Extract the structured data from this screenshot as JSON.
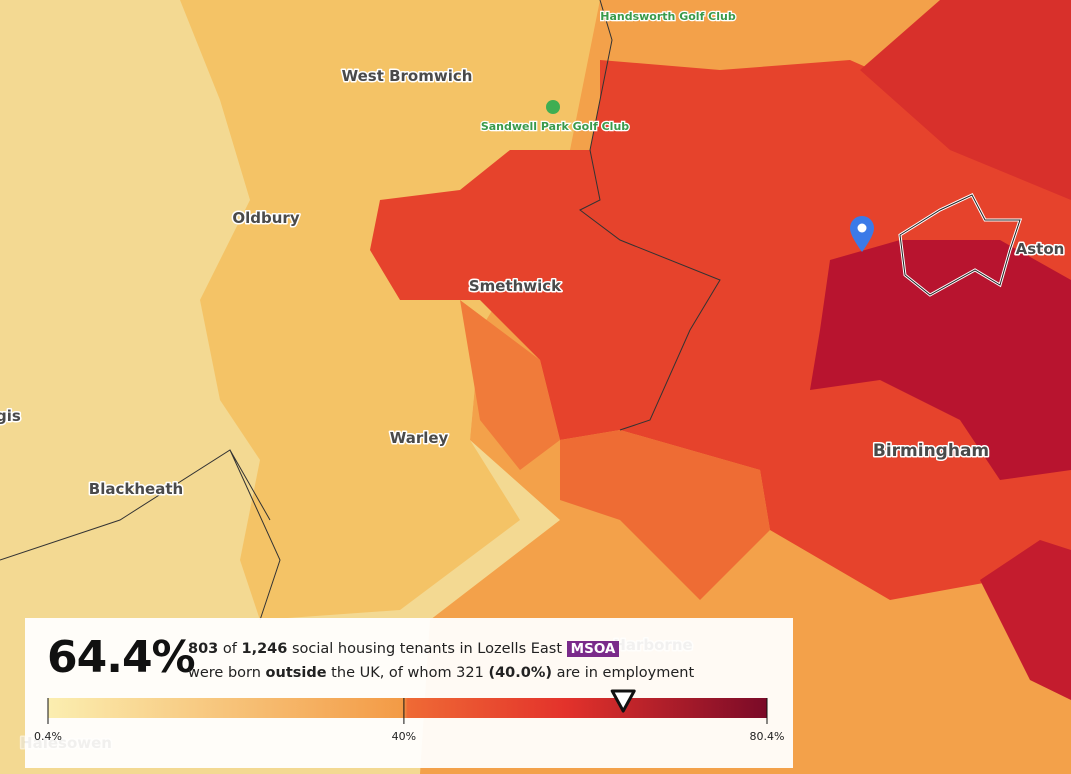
{
  "map": {
    "labels": [
      {
        "text": "Handsworth Golf Club"
      },
      {
        "text": "West Bromwich"
      },
      {
        "text": "Sandwell Park Golf Club"
      },
      {
        "text": "Oldbury"
      },
      {
        "text": "Smethwick"
      },
      {
        "text": "Aston"
      },
      {
        "text": "gis"
      },
      {
        "text": "Warley"
      },
      {
        "text": "Birmingham"
      },
      {
        "text": "Blackheath"
      },
      {
        "text": "Harborne"
      },
      {
        "text": "Halesowen"
      }
    ]
  },
  "panel": {
    "headline": {
      "value": 64.4,
      "label": "64.4%"
    },
    "line1": [
      {
        "text": "803",
        "bold": true
      },
      {
        "text": " of ",
        "bold": false
      },
      {
        "text": "1,246",
        "bold": true
      },
      {
        "text": " social housing tenants in Lozells East ",
        "bold": false
      }
    ],
    "tag": "MSOA",
    "line2": [
      {
        "text": "were born ",
        "bold": false
      },
      {
        "text": "outside",
        "bold": true
      },
      {
        "text": " the UK, of whom 321 ",
        "bold": false
      },
      {
        "text": "(40.0%)",
        "bold": true
      },
      {
        "text": " are in employment",
        "bold": false
      }
    ]
  },
  "legend": {
    "range": [
      0.4,
      80.4
    ],
    "ticks": [
      {
        "value": 0.4,
        "label": "0.4%"
      },
      {
        "value": 40,
        "label": "40%"
      },
      {
        "value": 80.4,
        "label": "80.4%"
      }
    ]
  }
}
